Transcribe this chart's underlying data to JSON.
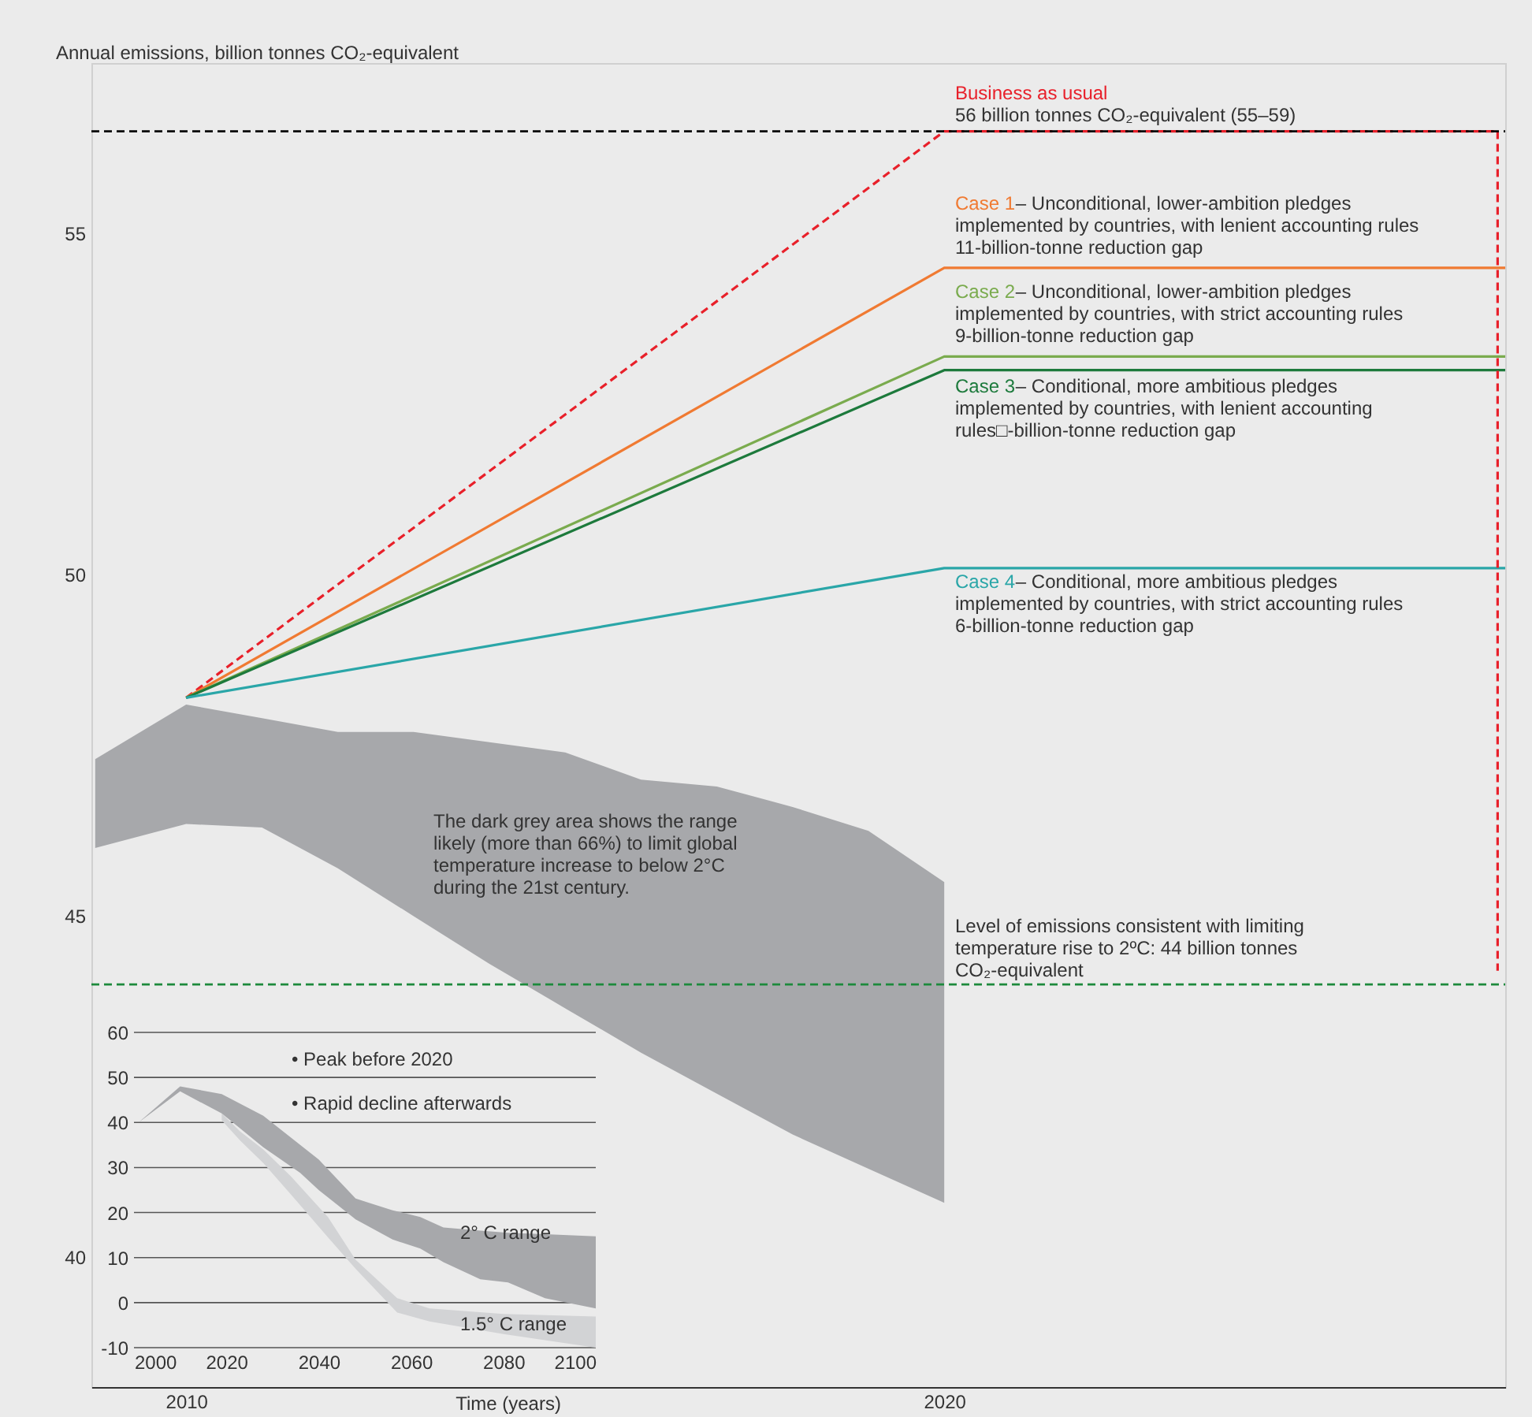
{
  "chart_data": [
    {
      "type": "line",
      "ylabel": "Annual emissions, billion tonnes CO₂-equivalent",
      "xlim": [
        2008.75,
        2027.4
      ],
      "xticks": [
        2010,
        2020
      ],
      "ylim": [
        38.1,
        57.5
      ],
      "yticks": [
        40,
        45,
        50,
        55
      ],
      "series": [
        {
          "type": "area",
          "color": "#a7a8ab",
          "x": [
            2008.8,
            2010,
            2011,
            2012,
            2013,
            2014,
            2015,
            2016,
            2017,
            2018,
            2019,
            2020
          ],
          "values": [
            null,
            null,
            null,
            null,
            null,
            null,
            null,
            null,
            null,
            null,
            null,
            null
          ],
          "upper": [
            47.3,
            48.1,
            47.9,
            47.7,
            47.7,
            47.55,
            47.4,
            47.0,
            46.9,
            46.6,
            46.25,
            45.5
          ],
          "lower": [
            46.0,
            46.35,
            46.3,
            45.7,
            45.0,
            44.3,
            43.65,
            43.0,
            42.4,
            41.8,
            41.3,
            40.8
          ]
        },
        {
          "name": "Business as usual",
          "color": "#e8202a",
          "x": [
            2010,
            2020,
            2027.3
          ],
          "values": [
            48.2,
            56.5,
            56.5
          ],
          "line_style": "dashed"
        },
        {
          "name": "Case 1",
          "color": "#f07a32",
          "x": [
            2010,
            2020,
            2027.4
          ],
          "values": [
            48.2,
            54.5,
            54.5
          ]
        },
        {
          "name": "Case 2",
          "color": "#7aab4e",
          "x": [
            2010,
            2020,
            2027.4
          ],
          "values": [
            48.2,
            53.2,
            53.2
          ]
        },
        {
          "name": "Case 3",
          "color": "#1d7a3c",
          "x": [
            2010,
            2020,
            2027.4
          ],
          "values": [
            48.2,
            53.0,
            53.0
          ]
        },
        {
          "name": "Case 4",
          "color": "#2aa6a8",
          "x": [
            2010,
            2020,
            2027.4
          ],
          "values": [
            48.2,
            50.1,
            50.1
          ]
        },
        {
          "color": "#e8202a",
          "x": [
            2027.3,
            2027.3
          ],
          "values": [
            56.5,
            44.2
          ],
          "line_style": "dashed"
        }
      ],
      "ref_lines": [
        {
          "axis": "y",
          "value": 56.5,
          "color": "#000000",
          "line_style": "dashed"
        },
        {
          "axis": "y",
          "value": 44,
          "color": "#1d8a3c",
          "line_style": "dashed",
          "label": "Level of emissions consistent with limiting\ntemperature rise to 2ºC: 44 billion tonnes\nCO₂-equivalent"
        }
      ],
      "annotations": [
        "56 billion tonnes CO₂-equivalent (55–59)",
        "– Unconditional, lower-ambition pledges\nimplemented by countries, with lenient accounting rules\n11-billion-tonne reduction gap",
        "– Unconditional, lower-ambition pledges\nimplemented by countries, with strict accounting rules\n9-billion-tonne reduction gap",
        "– Conditional, more ambitious pledges\nimplemented by countries, with lenient accounting\nrules□-billion-tonne reduction gap",
        "– Conditional, more ambitious pledges\nimplemented by countries, with strict accounting rules\n6-billion-tonne reduction gap",
        "The dark grey area shows the range\nlikely (more than 66%) to limit global\ntemperature increase to below 2°C\nduring the 21st century."
      ]
    },
    {
      "type": "area",
      "xlabel": "Time (years)",
      "xlim": [
        2000,
        2100
      ],
      "xticks": [
        2000,
        2020,
        2040,
        2060,
        2080,
        2100
      ],
      "ylim": [
        -10,
        60
      ],
      "yticks": [
        -10,
        0,
        10,
        20,
        30,
        40,
        50,
        60
      ],
      "grid": "y",
      "series": [
        {
          "color": "#d2d3d5",
          "x": [
            2019,
            2023,
            2028,
            2034,
            2042,
            2048,
            2057,
            2064,
            2080,
            2100
          ],
          "values": [
            null,
            null,
            null,
            null,
            null,
            null,
            null,
            null,
            null,
            null
          ],
          "upper": [
            42,
            38,
            34,
            28,
            19,
            9.5,
            1,
            -1.3,
            -2.5,
            -3.1
          ],
          "lower": [
            40.5,
            36,
            31,
            24,
            14.5,
            7.5,
            -2.2,
            -4.2,
            -7,
            -10
          ]
        },
        {
          "color": "#a7a8ab",
          "x": [
            2001,
            2010,
            2019,
            2028,
            2036,
            2040,
            2048,
            2056,
            2062,
            2067,
            2075,
            2081,
            2089,
            2100
          ],
          "values": [
            null,
            null,
            null,
            null,
            null,
            null,
            null,
            null,
            null,
            null,
            null,
            null,
            null,
            null
          ],
          "upper": [
            40,
            48,
            46.3,
            41.5,
            35,
            31.8,
            23.1,
            20.5,
            19,
            16.7,
            16,
            15.5,
            15.2,
            14.7
          ],
          "lower": [
            40,
            46.9,
            42,
            34.5,
            28.8,
            25,
            18.5,
            14,
            12,
            9,
            5.2,
            4.5,
            1,
            -1.3
          ]
        }
      ],
      "annotations": [
        "• Peak before 2020",
        "• Rapid decline afterwards",
        "2° C range",
        "1.5° C range"
      ]
    }
  ]
}
